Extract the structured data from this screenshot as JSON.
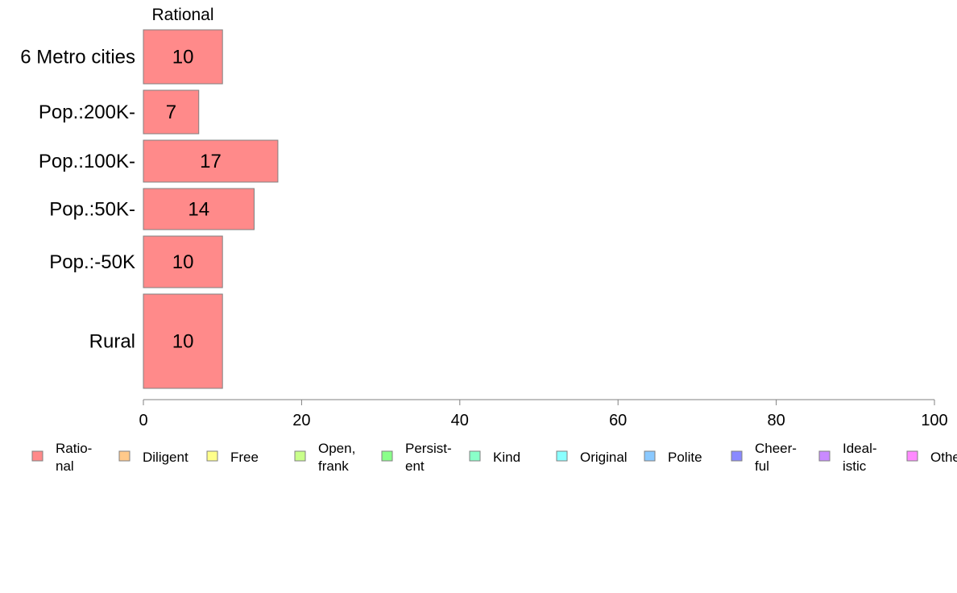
{
  "chart_data": {
    "type": "bar",
    "orientation": "horizontal",
    "stacked": true,
    "title": "",
    "xlabel": "",
    "ylabel": "",
    "series_title": "Rational",
    "categories": [
      "6 Metro cities",
      "Pop.:200K-",
      "Pop.:100K-",
      "Pop.:50K-",
      "Pop.:-50K",
      "Rural"
    ],
    "series": [
      {
        "name": "Rational",
        "values": [
          10,
          7,
          17,
          14,
          10,
          10
        ],
        "color": "#ff8a8a"
      }
    ],
    "xlim": [
      0,
      100
    ],
    "xticks": [
      0,
      20,
      40,
      60,
      80,
      100
    ],
    "grid": false,
    "legend_position": "bottom",
    "legend": [
      {
        "lines": [
          "Ratio-",
          "nal"
        ],
        "color": "#ff8a8a"
      },
      {
        "lines": [
          "Diligent"
        ],
        "color": "#ffc98a"
      },
      {
        "lines": [
          "Free"
        ],
        "color": "#ffff8a"
      },
      {
        "lines": [
          "Open,",
          "frank"
        ],
        "color": "#c9ff8a"
      },
      {
        "lines": [
          "Persist-",
          "ent"
        ],
        "color": "#8aff8a"
      },
      {
        "lines": [
          "Kind"
        ],
        "color": "#8affc9"
      },
      {
        "lines": [
          "Original"
        ],
        "color": "#8affff"
      },
      {
        "lines": [
          "Polite"
        ],
        "color": "#8ac9ff"
      },
      {
        "lines": [
          "Cheer-",
          "ful"
        ],
        "color": "#8a8aff"
      },
      {
        "lines": [
          "Ideal-",
          "istic"
        ],
        "color": "#c98aff"
      },
      {
        "lines": [
          "Other"
        ],
        "color": "#ff8aff"
      }
    ]
  }
}
